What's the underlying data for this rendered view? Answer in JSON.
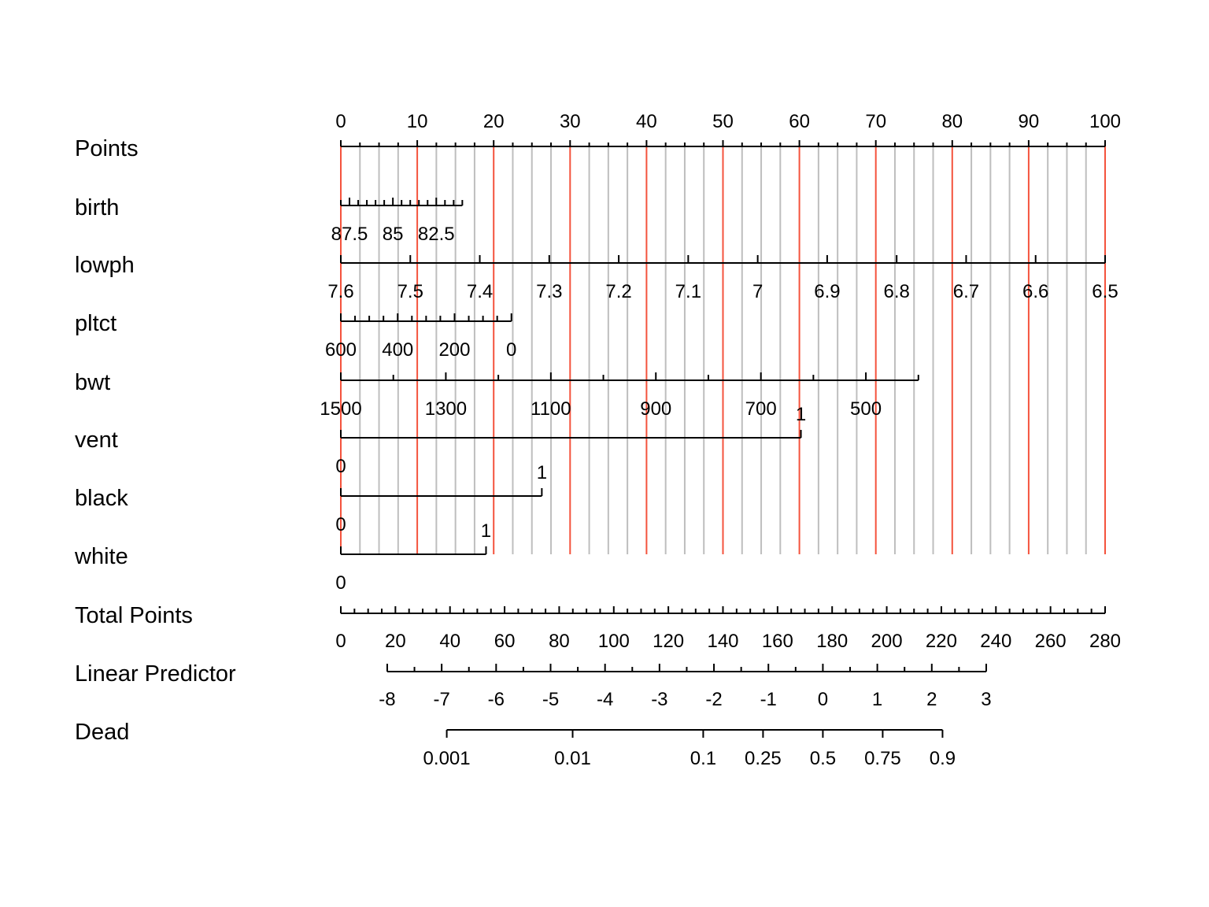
{
  "chart_data": {
    "type": "nomogram",
    "grid": true,
    "colors": {
      "major_grid": "#f4533d",
      "minor_grid": "#bebebe",
      "axis": "#000000"
    },
    "rows": [
      {
        "name": "Points",
        "points_range": [
          0,
          100
        ],
        "labels": [
          "0",
          "10",
          "20",
          "30",
          "40",
          "50",
          "60",
          "70",
          "80",
          "90",
          "100"
        ],
        "label_points": [
          0,
          10,
          20,
          30,
          40,
          50,
          60,
          70,
          80,
          90,
          100
        ],
        "label_position": "above",
        "minor_tick_step": 2.5,
        "major_tick_step": 10
      },
      {
        "name": "birth",
        "values": [
          88,
          87.5,
          87,
          86.5,
          86,
          85.5,
          85,
          84.5,
          84,
          83.5,
          83,
          82.5,
          82,
          81.5,
          81
        ],
        "points_per_unit": 2.271,
        "ref_value": 88,
        "labels": [
          "87.5",
          "85",
          "82.5"
        ]
      },
      {
        "name": "lowph",
        "values": [
          7.6,
          7.5,
          7.4,
          7.3,
          7.2,
          7.1,
          7,
          6.9,
          6.8,
          6.7,
          6.6,
          6.5
        ],
        "labels": [
          "7.6",
          "7.5",
          "7.4",
          "7.3",
          "7.2",
          "7.1",
          "7",
          "6.9",
          "6.8",
          "6.7",
          "6.6",
          "6.5"
        ],
        "points_per_unit": 90.909,
        "ref_value": 7.6
      },
      {
        "name": "pltct",
        "values": [
          600,
          550,
          500,
          450,
          400,
          350,
          300,
          250,
          200,
          150,
          100,
          50,
          0
        ],
        "labels": [
          "600",
          "400",
          "200",
          "0"
        ],
        "points_per_unit": 0.0372,
        "ref_value": 600
      },
      {
        "name": "bwt",
        "values": [
          1500,
          1400,
          1300,
          1200,
          1100,
          1000,
          900,
          800,
          700,
          600,
          500,
          400
        ],
        "labels": [
          "1500",
          "1300",
          "1100",
          "900",
          "700",
          "500"
        ],
        "points_per_unit": 0.0687,
        "ref_value": 1500
      },
      {
        "name": "vent",
        "levels": [
          "0",
          "1"
        ],
        "points": [
          0,
          60.2
        ]
      },
      {
        "name": "black",
        "levels": [
          "0",
          "1"
        ],
        "points": [
          0,
          26.3
        ]
      },
      {
        "name": "white",
        "levels": [
          "0",
          "1"
        ],
        "points": [
          0,
          19
        ]
      },
      {
        "name": "Total Points",
        "total_range": [
          0,
          280
        ],
        "labels": [
          "0",
          "20",
          "40",
          "60",
          "80",
          "100",
          "120",
          "140",
          "160",
          "180",
          "200",
          "220",
          "240",
          "260",
          "280"
        ],
        "minor_tick_step": 5
      },
      {
        "name": "Linear Predictor",
        "values": [
          -8,
          -7,
          -6,
          -5,
          -4,
          -3,
          -2,
          -1,
          0,
          1,
          2,
          3
        ],
        "labels": [
          "-8",
          "-7",
          "-6",
          "-5",
          "-4",
          "-3",
          "-2",
          "-1",
          "0",
          "1",
          "2",
          "3"
        ],
        "total_at_zero": 176.6,
        "total_per_unit": 19.95,
        "minor_tick_step": 0.5
      },
      {
        "name": "Dead",
        "probabilities": [
          0.001,
          0.01,
          0.1,
          0.25,
          0.5,
          0.75,
          0.9
        ],
        "labels": [
          "0.001",
          "0.01",
          "0.1",
          "0.25",
          "0.5",
          "0.75",
          "0.9"
        ]
      }
    ]
  }
}
